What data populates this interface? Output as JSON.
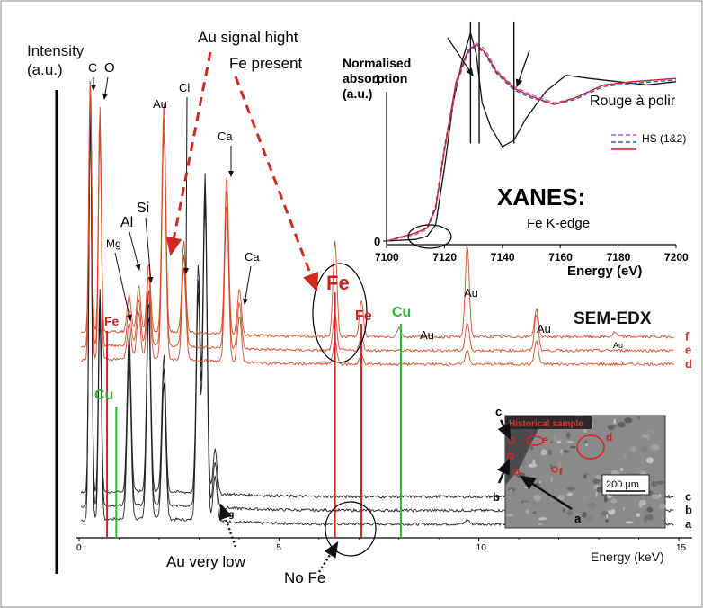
{
  "chart_data": [
    {
      "type": "line",
      "title": "SEM-EDX",
      "xlabel": "Energy (keV)",
      "ylabel": "Intensity (a.u.)",
      "xlim": [
        0,
        15
      ],
      "xticks": [
        "0",
        "5",
        "10",
        "15"
      ],
      "y_axis_line_1": "Intensity",
      "y_axis_line_2": "(a.u.)",
      "x_axis_line": "Energy (keV)",
      "series": [
        {
          "name": "a",
          "color": "#222222",
          "baseline": 0.03,
          "peaks": [
            [
              0.28,
              0.9
            ],
            [
              0.52,
              0.45
            ],
            [
              1.25,
              0.35
            ],
            [
              1.74,
              0.45
            ],
            [
              2.12,
              0.3
            ],
            [
              2.98,
              0.5
            ],
            [
              3.15,
              0.7
            ],
            [
              3.4,
              0.1
            ],
            [
              9.71,
              0.01
            ]
          ]
        },
        {
          "name": "b",
          "color": "#222222",
          "baseline": 0.06,
          "peaks": [
            [
              0.28,
              0.9
            ],
            [
              0.52,
              0.45
            ],
            [
              1.25,
              0.35
            ],
            [
              1.74,
              0.45
            ],
            [
              2.12,
              0.3
            ],
            [
              2.98,
              0.5
            ],
            [
              3.15,
              0.7
            ],
            [
              3.4,
              0.1
            ]
          ]
        },
        {
          "name": "c",
          "color": "#222222",
          "baseline": 0.09,
          "peaks": [
            [
              0.28,
              0.9
            ],
            [
              0.52,
              0.45
            ],
            [
              1.25,
              0.35
            ],
            [
              1.74,
              0.45
            ],
            [
              2.12,
              0.3
            ],
            [
              2.98,
              0.5
            ],
            [
              3.15,
              0.7
            ],
            [
              3.4,
              0.1
            ]
          ]
        },
        {
          "name": "d",
          "color": "#d94a2a",
          "baseline": 0.38,
          "peaks": [
            [
              0.28,
              0.6
            ],
            [
              0.52,
              0.5
            ],
            [
              1.25,
              0.08
            ],
            [
              1.49,
              0.1
            ],
            [
              1.74,
              0.15
            ],
            [
              2.12,
              0.5
            ],
            [
              2.62,
              0.2
            ],
            [
              3.69,
              0.35
            ],
            [
              4.01,
              0.1
            ],
            [
              6.4,
              0.05
            ],
            [
              7.06,
              0.02
            ],
            [
              9.71,
              0.03
            ],
            [
              11.44,
              0.05
            ]
          ]
        },
        {
          "name": "e",
          "color": "#d94a2a",
          "baseline": 0.41,
          "peaks": [
            [
              0.28,
              0.6
            ],
            [
              0.52,
              0.5
            ],
            [
              1.25,
              0.08
            ],
            [
              1.49,
              0.1
            ],
            [
              1.74,
              0.15
            ],
            [
              2.12,
              0.5
            ],
            [
              2.62,
              0.2
            ],
            [
              3.69,
              0.35
            ],
            [
              4.01,
              0.1
            ],
            [
              6.4,
              0.08
            ],
            [
              7.06,
              0.03
            ],
            [
              9.71,
              0.06
            ],
            [
              11.44,
              0.08
            ]
          ]
        },
        {
          "name": "f",
          "color": "#d94a2a",
          "baseline": 0.44,
          "peaks": [
            [
              0.28,
              0.6
            ],
            [
              0.52,
              0.5
            ],
            [
              1.25,
              0.08
            ],
            [
              1.49,
              0.1
            ],
            [
              1.74,
              0.15
            ],
            [
              2.12,
              0.5
            ],
            [
              2.62,
              0.2
            ],
            [
              3.69,
              0.35
            ],
            [
              4.01,
              0.1
            ],
            [
              6.4,
              0.21
            ],
            [
              7.06,
              0.08
            ],
            [
              8.0,
              0.02
            ],
            [
              9.71,
              0.2
            ],
            [
              11.44,
              0.06
            ],
            [
              13.4,
              0.01
            ]
          ]
        }
      ],
      "reference_lines": [
        {
          "label": "Fe",
          "x": 0.7,
          "color": "#d12020"
        },
        {
          "label": "Cu",
          "x": 0.93,
          "color": "#2db82d"
        },
        {
          "label": "Fe",
          "x": 6.4,
          "color": "#d12020"
        },
        {
          "label": "Fe",
          "x": 7.06,
          "color": "#d12020"
        },
        {
          "label": "Cu",
          "x": 8.05,
          "color": "#2db82d"
        }
      ],
      "peak_labels": [
        "C",
        "O",
        "Mg",
        "Al",
        "Si",
        "Au",
        "Cl",
        "Ca",
        "Ca",
        "Au",
        "Au",
        "Au",
        "Au",
        "Ag"
      ],
      "annotations": {
        "top_1": "Au signal hight",
        "top_2": "Fe present",
        "bottom_1": "Au very low",
        "bottom_2": "No Fe",
        "fe_big": "Fe",
        "fe_mid": "Fe",
        "fe_left": "Fe",
        "cu_left": "Cu",
        "cu_right": "Cu"
      }
    },
    {
      "type": "line",
      "title": "XANES:",
      "subtitle": "Fe K-edge",
      "xlabel": "Energy (eV)",
      "ylabel": "Normalised absorption (a.u.)",
      "ylabel_1": "Normalised",
      "ylabel_2": "absorption",
      "ylabel_3": "(a.u.)",
      "xlim": [
        7100,
        7200
      ],
      "ylim": [
        0,
        1.25
      ],
      "xticks": [
        "7100",
        "7120",
        "7140",
        "7160",
        "7180",
        "7200"
      ],
      "yticks": [
        "0",
        "1"
      ],
      "series": [
        {
          "name": "Rouge à polir",
          "color": "#111111",
          "points": [
            [
              7100,
              0.0
            ],
            [
              7110,
              0.01
            ],
            [
              7114,
              0.03
            ],
            [
              7117,
              0.1
            ],
            [
              7120,
              0.45
            ],
            [
              7123,
              0.85
            ],
            [
              7126,
              1.1
            ],
            [
              7129,
              1.28
            ],
            [
              7131,
              1.15
            ],
            [
              7133,
              0.85
            ],
            [
              7136,
              0.7
            ],
            [
              7140,
              0.58
            ],
            [
              7144,
              0.62
            ],
            [
              7148,
              0.75
            ],
            [
              7155,
              0.92
            ],
            [
              7162,
              1.02
            ],
            [
              7170,
              1.0
            ],
            [
              7180,
              0.98
            ],
            [
              7190,
              0.96
            ],
            [
              7200,
              0.98
            ]
          ]
        },
        {
          "name": "HS (1&2)",
          "color": "#c060c8",
          "dashed": true,
          "points": [
            [
              7100,
              0.0
            ],
            [
              7110,
              0.04
            ],
            [
              7114,
              0.07
            ],
            [
              7117,
              0.2
            ],
            [
              7120,
              0.55
            ],
            [
              7124,
              0.95
            ],
            [
              7128,
              1.15
            ],
            [
              7131,
              1.22
            ],
            [
              7134,
              1.18
            ],
            [
              7138,
              1.05
            ],
            [
              7144,
              0.95
            ],
            [
              7150,
              0.9
            ],
            [
              7158,
              0.85
            ],
            [
              7165,
              0.88
            ],
            [
              7175,
              0.96
            ],
            [
              7185,
              0.98
            ],
            [
              7200,
              1.0
            ]
          ]
        },
        {
          "name": "HS (1&2)",
          "color": "#3050c0",
          "dashed": true,
          "points": [
            [
              7100,
              0.0
            ],
            [
              7110,
              0.05
            ],
            [
              7114,
              0.08
            ],
            [
              7117,
              0.22
            ],
            [
              7120,
              0.58
            ],
            [
              7124,
              0.97
            ],
            [
              7128,
              1.16
            ],
            [
              7131,
              1.2
            ],
            [
              7134,
              1.15
            ],
            [
              7138,
              1.03
            ],
            [
              7144,
              0.93
            ],
            [
              7150,
              0.88
            ],
            [
              7158,
              0.84
            ],
            [
              7165,
              0.87
            ],
            [
              7175,
              0.95
            ],
            [
              7185,
              0.97
            ],
            [
              7200,
              0.99
            ]
          ]
        },
        {
          "name": "",
          "color": "#d02020",
          "points": [
            [
              7100,
              0.0
            ],
            [
              7110,
              0.05
            ],
            [
              7114,
              0.08
            ],
            [
              7117,
              0.2
            ],
            [
              7120,
              0.56
            ],
            [
              7124,
              0.98
            ],
            [
              7128,
              1.17
            ],
            [
              7131,
              1.21
            ],
            [
              7134,
              1.16
            ],
            [
              7138,
              1.04
            ],
            [
              7144,
              0.94
            ],
            [
              7150,
              0.89
            ],
            [
              7158,
              0.84
            ],
            [
              7165,
              0.88
            ],
            [
              7175,
              0.96
            ],
            [
              7185,
              0.98
            ],
            [
              7200,
              1.0
            ]
          ]
        }
      ],
      "marked_energies": [
        7129,
        7132,
        7144
      ]
    }
  ],
  "inset": {
    "title": "Historical sample",
    "scale": "200 µm",
    "point_labels": [
      "c",
      "e",
      "d",
      "f",
      "b",
      "a"
    ]
  }
}
